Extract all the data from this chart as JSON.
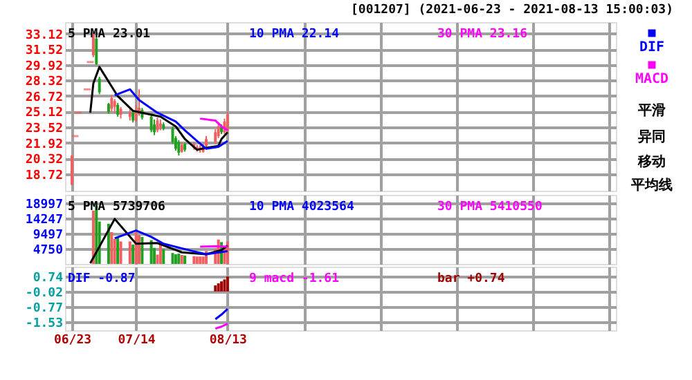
{
  "chart_data": [
    {
      "type": "candlestick",
      "title": "[001207] (2021-06-23 - 2021-08-13 15:00:03)",
      "x": [
        "2021-06-23",
        "2021-06-24",
        "2021-06-25",
        "2021-06-28",
        "2021-06-29",
        "2021-06-30",
        "2021-07-01",
        "2021-07-02",
        "2021-07-05",
        "2021-07-06",
        "2021-07-07",
        "2021-07-08",
        "2021-07-09",
        "2021-07-12",
        "2021-07-13",
        "2021-07-14",
        "2021-07-15",
        "2021-07-16",
        "2021-07-19",
        "2021-07-20",
        "2021-07-21",
        "2021-07-22",
        "2021-07-23",
        "2021-07-26",
        "2021-07-27",
        "2021-07-28",
        "2021-07-29",
        "2021-07-30",
        "2021-08-02",
        "2021-08-03",
        "2021-08-04",
        "2021-08-05",
        "2021-08-06",
        "2021-08-09",
        "2021-08-10",
        "2021-08-11",
        "2021-08-12",
        "2021-08-13"
      ],
      "ohlc": [
        [
          17.6,
          20.6,
          17.6,
          20.6
        ],
        [
          22.6,
          22.6,
          22.6,
          22.6
        ],
        [
          25.0,
          25.0,
          25.0,
          25.0
        ],
        [
          27.4,
          27.4,
          27.4,
          27.4
        ],
        [
          30.2,
          30.2,
          30.2,
          30.2
        ],
        [
          30.9,
          33.2,
          30.7,
          33.0
        ],
        [
          32.6,
          32.8,
          29.9,
          30.0
        ],
        [
          28.5,
          28.7,
          26.9,
          27.1
        ],
        [
          25.9,
          26.0,
          24.9,
          25.1
        ],
        [
          25.4,
          26.8,
          25.1,
          26.5
        ],
        [
          25.6,
          26.4,
          25.0,
          26.2
        ],
        [
          25.8,
          26.0,
          24.6,
          24.8
        ],
        [
          24.8,
          25.6,
          24.4,
          25.4
        ],
        [
          24.6,
          25.5,
          24.2,
          25.0
        ],
        [
          25.0,
          25.2,
          24.0,
          24.2
        ],
        [
          24.2,
          25.8,
          24.1,
          25.2
        ],
        [
          24.9,
          27.4,
          24.7,
          25.5
        ],
        [
          25.3,
          25.5,
          24.3,
          24.5
        ],
        [
          24.6,
          24.8,
          23.0,
          23.2
        ],
        [
          23.8,
          24.3,
          22.7,
          23.0
        ],
        [
          23.2,
          24.5,
          23.0,
          24.2
        ],
        [
          23.6,
          24.3,
          23.2,
          23.9
        ],
        [
          23.8,
          24.0,
          23.2,
          23.4
        ],
        [
          23.4,
          23.6,
          21.8,
          22.0
        ],
        [
          22.4,
          22.6,
          21.1,
          21.3
        ],
        [
          22.0,
          22.2,
          20.6,
          20.9
        ],
        [
          21.0,
          22.0,
          20.9,
          21.7
        ],
        [
          21.8,
          21.9,
          21.0,
          21.2
        ],
        [
          21.4,
          22.0,
          21.2,
          21.8
        ],
        [
          21.3,
          21.7,
          21.0,
          21.5
        ],
        [
          21.2,
          21.7,
          20.9,
          21.4
        ],
        [
          21.0,
          21.8,
          20.9,
          21.6
        ],
        [
          21.6,
          22.6,
          21.4,
          22.3
        ],
        [
          22.0,
          23.3,
          21.8,
          23.0
        ],
        [
          22.6,
          24.0,
          22.4,
          23.6
        ],
        [
          23.6,
          23.8,
          22.8,
          23.0
        ],
        [
          23.0,
          24.4,
          22.8,
          24.1
        ],
        [
          23.2,
          25.1,
          23.0,
          24.8
        ]
      ],
      "colors": [
        "#f06060",
        "#f06060",
        "#f06060",
        "#f06060",
        "#f06060",
        "#f06060",
        "#20a020",
        "#20a020",
        "#20a020",
        "#f06060",
        "#f06060",
        "#20a020",
        "#f06060",
        "#f06060",
        "#20a020",
        "#f06060",
        "#f06060",
        "#20a020",
        "#20a020",
        "#20a020",
        "#f06060",
        "#f06060",
        "#20a020",
        "#20a020",
        "#20a020",
        "#20a020",
        "#f06060",
        "#20a020",
        "#f06060",
        "#f06060",
        "#f06060",
        "#f06060",
        "#f06060",
        "#f06060",
        "#f06060",
        "#20a020",
        "#f06060",
        "#f06060"
      ],
      "xlim": [
        "2021-06-23",
        "2021-12-16"
      ],
      "xticks": [
        {
          "value": "2021-06-23",
          "label": null
        },
        {
          "value": "2021-07-14",
          "label": null
        },
        {
          "value": "2021-08-13",
          "label": null
        },
        {
          "value": "2021-09-07",
          "label": null
        },
        {
          "value": "2021-10-02",
          "label": null
        },
        {
          "value": "2021-10-27",
          "label": null
        },
        {
          "value": "2021-11-21",
          "label": null
        },
        {
          "value": "2021-12-16",
          "label": null
        }
      ],
      "ylim": [
        17.0,
        34.3
      ],
      "yticks": [
        18.72,
        20.32,
        21.92,
        23.52,
        25.12,
        26.72,
        28.32,
        29.92,
        31.52,
        33.12
      ],
      "grid": true,
      "tick_labels": "y",
      "series": [
        {
          "name": "5 PMA 23.01",
          "type": "line",
          "color": "#000000",
          "x": [
            "2021-06-29",
            "2021-06-30",
            "2021-07-02",
            "2021-07-08",
            "2021-07-13",
            "2021-07-16",
            "2021-07-22",
            "2021-07-27",
            "2021-07-30",
            "2021-08-03",
            "2021-08-06",
            "2021-08-10",
            "2021-08-11",
            "2021-08-13"
          ],
          "values": [
            25.0,
            28.0,
            29.7,
            26.7,
            25.2,
            25.0,
            24.6,
            23.6,
            22.3,
            21.2,
            21.4,
            21.6,
            22.3,
            23.0
          ]
        },
        {
          "name": "10 PMA 22.14",
          "type": "line",
          "color": "#0000ff",
          "x": [
            "2021-07-07",
            "2021-07-12",
            "2021-07-15",
            "2021-07-21",
            "2021-07-27",
            "2021-07-30",
            "2021-08-03",
            "2021-08-06",
            "2021-08-10",
            "2021-08-13"
          ],
          "values": [
            26.8,
            27.4,
            26.3,
            25.0,
            24.1,
            23.2,
            22.1,
            21.3,
            21.5,
            22.1
          ]
        },
        {
          "name": "30 PMA 23.16",
          "type": "line",
          "color": "#ff00ff",
          "x": [
            "2021-08-04",
            "2021-08-09",
            "2021-08-11",
            "2021-08-13"
          ],
          "values": [
            24.4,
            24.2,
            23.6,
            23.2
          ]
        }
      ],
      "annotations": [
        "DIF",
        "MACD",
        "平滑",
        "异同",
        "移动",
        "平均线"
      ]
    },
    {
      "type": "bar",
      "x": [
        "2021-06-30",
        "2021-07-01",
        "2021-07-02",
        "2021-07-05",
        "2021-07-06",
        "2021-07-07",
        "2021-07-08",
        "2021-07-09",
        "2021-07-12",
        "2021-07-13",
        "2021-07-14",
        "2021-07-15",
        "2021-07-16",
        "2021-07-19",
        "2021-07-20",
        "2021-07-21",
        "2021-07-22",
        "2021-07-23",
        "2021-07-26",
        "2021-07-27",
        "2021-07-28",
        "2021-07-29",
        "2021-07-30",
        "2021-08-02",
        "2021-08-03",
        "2021-08-04",
        "2021-08-05",
        "2021-08-06",
        "2021-08-09",
        "2021-08-10",
        "2021-08-11",
        "2021-08-12",
        "2021-08-13"
      ],
      "values": [
        16600,
        18100,
        13200,
        12500,
        9900,
        7800,
        8400,
        7000,
        7000,
        6000,
        9900,
        8900,
        8400,
        7400,
        5000,
        2900,
        7000,
        4600,
        3400,
        3000,
        3200,
        2800,
        2600,
        2400,
        2300,
        2300,
        2300,
        4000,
        4600,
        7600,
        6800,
        5000,
        7000
      ],
      "colors": [
        "#f06060",
        "#20a020",
        "#20a020",
        "#20a020",
        "#f06060",
        "#f06060",
        "#20a020",
        "#f06060",
        "#f06060",
        "#20a020",
        "#f06060",
        "#f06060",
        "#20a020",
        "#20a020",
        "#20a020",
        "#f06060",
        "#f06060",
        "#20a020",
        "#20a020",
        "#20a020",
        "#20a020",
        "#f06060",
        "#20a020",
        "#f06060",
        "#f06060",
        "#f06060",
        "#f06060",
        "#f06060",
        "#f06060",
        "#f06060",
        "#20a020",
        "#f06060",
        "#f06060"
      ],
      "xlim": [
        "2021-06-23",
        "2021-12-16"
      ],
      "xticks": [
        {
          "value": "2021-06-23",
          "label": null
        },
        {
          "value": "2021-07-14",
          "label": null
        },
        {
          "value": "2021-08-13",
          "label": null
        },
        {
          "value": "2021-09-07",
          "label": null
        },
        {
          "value": "2021-10-02",
          "label": null
        },
        {
          "value": "2021-10-27",
          "label": null
        },
        {
          "value": "2021-11-21",
          "label": null
        },
        {
          "value": "2021-12-16",
          "label": null
        }
      ],
      "ylim": [
        0,
        21500
      ],
      "yticks": [
        4750,
        9497,
        14247,
        18997
      ],
      "grid": true,
      "tick_labels": "y",
      "series": [
        {
          "name": "5 PMA 5739706",
          "type": "line",
          "color": "#000000",
          "x": [
            "2021-06-29",
            "2021-07-07",
            "2021-07-14",
            "2021-07-21",
            "2021-07-29",
            "2021-08-06",
            "2021-08-11",
            "2021-08-13"
          ],
          "values": [
            200,
            14000,
            6300,
            6500,
            3600,
            3000,
            4300,
            5700
          ]
        },
        {
          "name": "10 PMA 4023564",
          "type": "line",
          "color": "#0000ff",
          "x": [
            "2021-07-07",
            "2021-07-14",
            "2021-07-19",
            "2021-07-23",
            "2021-08-02",
            "2021-08-06",
            "2021-08-13"
          ],
          "values": [
            8000,
            10400,
            8400,
            6300,
            3900,
            3000,
            4000
          ]
        },
        {
          "name": "30 PMA 5410550",
          "type": "line",
          "color": "#ff00ff",
          "x": [
            "2021-08-04",
            "2021-08-09",
            "2021-08-13"
          ],
          "values": [
            5400,
            5500,
            5400
          ]
        }
      ]
    },
    {
      "type": "line",
      "xlim": [
        "2021-06-23",
        "2021-12-16"
      ],
      "xticks": [
        {
          "value": "2021-06-23",
          "label": "06/23"
        },
        {
          "value": "2021-07-14",
          "label": "07/14"
        },
        {
          "value": "2021-08-13",
          "label": "08/13"
        },
        {
          "value": "2021-09-07",
          "label": null
        },
        {
          "value": "2021-10-02",
          "label": null
        },
        {
          "value": "2021-10-27",
          "label": null
        },
        {
          "value": "2021-11-21",
          "label": null
        },
        {
          "value": "2021-12-16",
          "label": null
        }
      ],
      "ylim": [
        -1.93,
        1.23
      ],
      "yticks": [
        -1.53,
        -0.77,
        -0.02,
        0.74
      ],
      "grid": true,
      "series": [
        {
          "name": "DIF -0.87",
          "type": "line",
          "color": "#0000ff",
          "x": [
            "2021-08-09",
            "2021-08-11",
            "2021-08-13"
          ],
          "values": [
            -1.38,
            -1.15,
            -0.87
          ]
        },
        {
          "name": "9 macd -1.61",
          "type": "line",
          "color": "#ff00ff",
          "x": [
            "2021-08-09",
            "2021-08-11",
            "2021-08-13"
          ],
          "values": [
            -1.85,
            -1.75,
            -1.61
          ]
        },
        {
          "name": "bar +0.74",
          "type": "bar",
          "color": "#a00000",
          "x": [
            "2021-08-09",
            "2021-08-10",
            "2021-08-11",
            "2021-08-12",
            "2021-08-13"
          ],
          "values": [
            0.3,
            0.4,
            0.5,
            0.6,
            0.74
          ]
        }
      ]
    }
  ]
}
